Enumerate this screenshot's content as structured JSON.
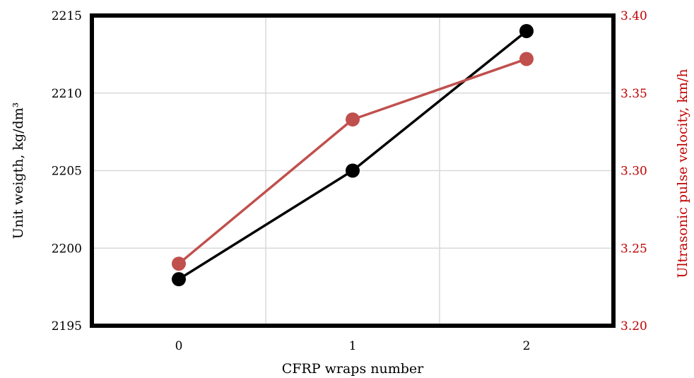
{
  "chart_data": {
    "type": "line",
    "title": "",
    "xlabel": "CFRP wraps number",
    "ylabel_left": "Unit weigth, kg/dm³",
    "ylabel_right": "Ultrasonic pulse velocity, km/h",
    "categories": [
      "0",
      "1",
      "2"
    ],
    "x": [
      0,
      1,
      2
    ],
    "xlim": [
      -0.5,
      2.5
    ],
    "ylim_left": [
      2195,
      2215
    ],
    "ylim_right": [
      3.2,
      3.4
    ],
    "yticks_left": [
      "2195",
      "2200",
      "2205",
      "2210",
      "2215"
    ],
    "yticks_right": [
      "3.20",
      "3.25",
      "3.30",
      "3.35",
      "3.40"
    ],
    "grid": true,
    "legend": "none",
    "colors": {
      "left_series": "#000000",
      "right_series": "#c0504d",
      "right_axis": "#c00000",
      "grid": "#d9d9d9"
    },
    "series": [
      {
        "axis": "left",
        "values": [
          2198,
          2205,
          2214
        ]
      },
      {
        "axis": "right",
        "values": [
          3.24,
          3.333,
          3.372
        ]
      }
    ]
  }
}
